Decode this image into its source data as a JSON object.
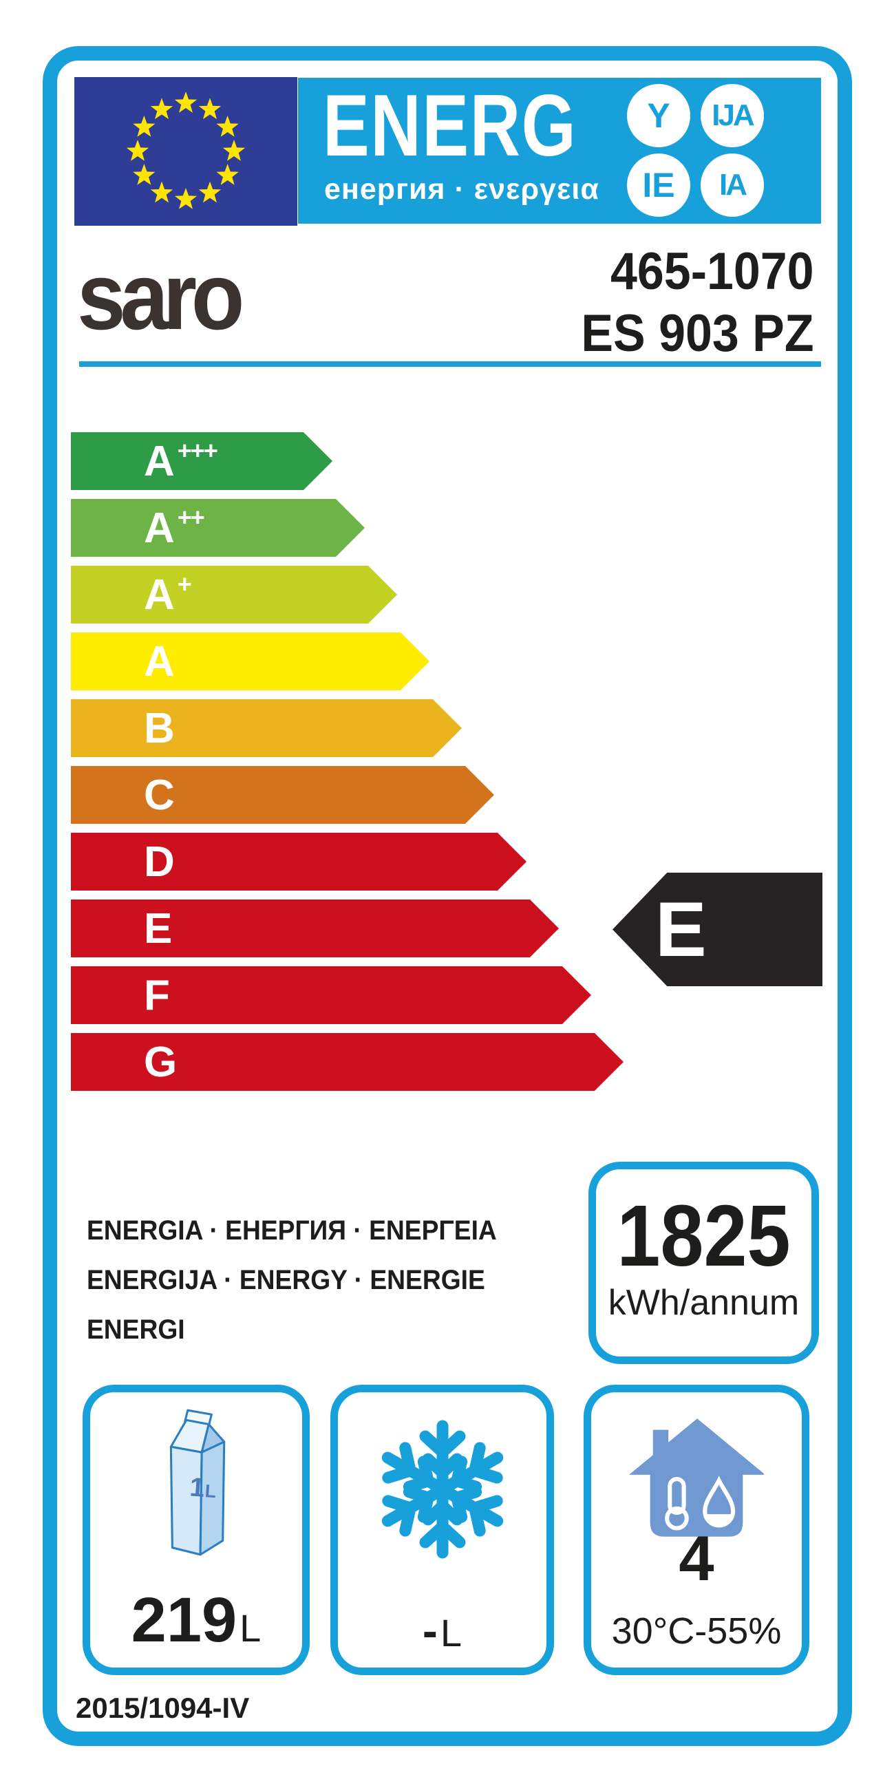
{
  "header": {
    "logo_text": "ENERG",
    "logo_subtitle": "енергия · ενεργεια",
    "badges": [
      "Y",
      "IJA",
      "IE",
      "IA"
    ]
  },
  "product": {
    "brand": "saro",
    "article": "465-1070",
    "model": "ES 903 PZ"
  },
  "scale": {
    "grades": [
      {
        "grade": "A",
        "sup": "+++",
        "color": "#2E9B46"
      },
      {
        "grade": "A",
        "sup": "++",
        "color": "#6DB345"
      },
      {
        "grade": "A",
        "sup": "+",
        "color": "#C3D124"
      },
      {
        "grade": "A",
        "sup": "",
        "color": "#FFED00"
      },
      {
        "grade": "B",
        "sup": "",
        "color": "#EBB41F"
      },
      {
        "grade": "C",
        "sup": "",
        "color": "#D3731C"
      },
      {
        "grade": "D",
        "sup": "",
        "color": "#CC101E"
      },
      {
        "grade": "E",
        "sup": "",
        "color": "#CC101E"
      },
      {
        "grade": "F",
        "sup": "",
        "color": "#CC101E"
      },
      {
        "grade": "G",
        "sup": "",
        "color": "#CC101E"
      }
    ]
  },
  "rating": {
    "grade": "E",
    "arrow_color": "#272325"
  },
  "energy_words": {
    "line1": "ENERGIA · ЕНЕРГИЯ · ΕΝΕΡΓΕΙΑ",
    "line2": "ENERGIJA · ENERGY · ENERGIE",
    "line3": "ENERGI"
  },
  "consumption": {
    "value": "1825",
    "unit": "kWh/annum"
  },
  "compartments": {
    "fridge": {
      "value": "219",
      "unit": "L",
      "icon": "milk-carton-icon",
      "carton_label": "1",
      "carton_unit": "L"
    },
    "freezer": {
      "value": "-",
      "unit": "L",
      "icon": "snowflake-icon"
    },
    "climate": {
      "value": "4",
      "condition": "30°C-55%",
      "icon": "house-climate-icon"
    }
  },
  "regulation": "2015/1094-IV",
  "colors": {
    "accent_blue": "#18A0DB",
    "eu_flag_blue": "#2F3D96",
    "star_yellow": "#FFE500",
    "rating_black": "#272325"
  }
}
